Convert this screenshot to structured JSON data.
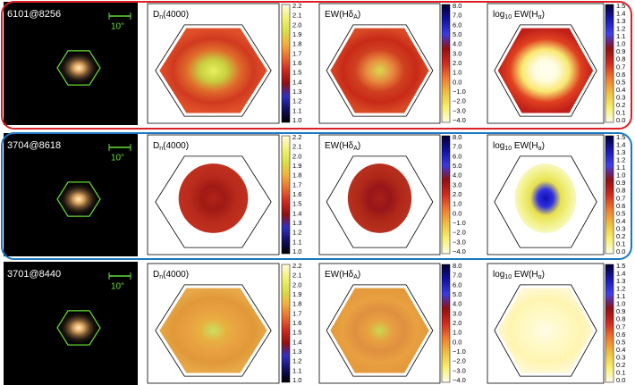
{
  "rows": [
    {
      "id": "6101@8256",
      "scale": "10\""
    },
    {
      "id": "3704@8618",
      "scale": "10\""
    },
    {
      "id": "3701@8440",
      "scale": "10\""
    }
  ],
  "panels": [
    {
      "title": [
        {
          "text": "D"
        },
        {
          "sub": "n"
        },
        {
          "text": "(4000)"
        }
      ],
      "ticks": [
        "2.2",
        "2.1",
        "2.0",
        "1.9",
        "1.8",
        "1.7",
        "1.6",
        "1.5",
        "1.4",
        "1.3",
        "1.2",
        "1.1",
        "1.0"
      ]
    },
    {
      "title": [
        {
          "text": "EW(Hδ"
        },
        {
          "sub": "A"
        },
        {
          "text": ")"
        }
      ],
      "ticks": [
        "8.0",
        "7.0",
        "6.0",
        "5.0",
        "4.0",
        "3.0",
        "2.0",
        "1.0",
        "0.0",
        "−1.0",
        "−2.0",
        "−3.0",
        "−4.0"
      ]
    },
    {
      "title": [
        {
          "text": "log"
        },
        {
          "sub": "10"
        },
        {
          "text": " EW(H"
        },
        {
          "sub": "α"
        },
        {
          "text": ")"
        }
      ],
      "ticks": [
        "1.5",
        "1.4",
        "1.3",
        "1.2",
        "1.1",
        "1.0",
        "0.9",
        "0.8",
        "0.7",
        "0.6",
        "0.5",
        "0.4",
        "0.3",
        "0.2",
        "0.1",
        "0.0"
      ]
    }
  ]
}
